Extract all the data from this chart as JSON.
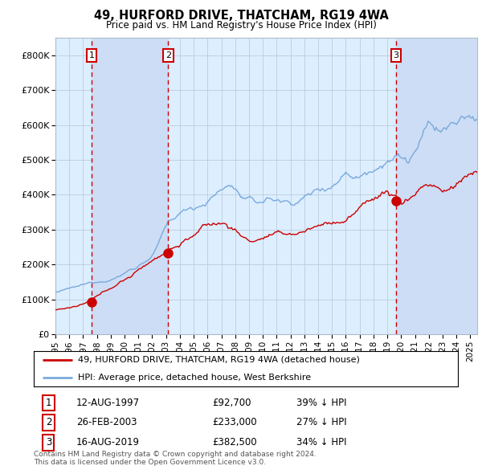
{
  "title": "49, HURFORD DRIVE, THATCHAM, RG19 4WA",
  "subtitle": "Price paid vs. HM Land Registry's House Price Index (HPI)",
  "legend_line1": "49, HURFORD DRIVE, THATCHAM, RG19 4WA (detached house)",
  "legend_line2": "HPI: Average price, detached house, West Berkshire",
  "footnote1": "Contains HM Land Registry data © Crown copyright and database right 2024.",
  "footnote2": "This data is licensed under the Open Government Licence v3.0.",
  "transactions": [
    {
      "num": 1,
      "date": "12-AUG-1997",
      "price": "£92,700",
      "pct": "39% ↓ HPI",
      "year": 1997.62
    },
    {
      "num": 2,
      "date": "26-FEB-2003",
      "price": "£233,000",
      "pct": "27% ↓ HPI",
      "year": 2003.15
    },
    {
      "num": 3,
      "date": "16-AUG-2019",
      "price": "£382,500",
      "pct": "34% ↓ HPI",
      "year": 2019.62
    }
  ],
  "transaction_values": [
    92700,
    233000,
    382500
  ],
  "ylim": [
    0,
    850000
  ],
  "yticks": [
    0,
    100000,
    200000,
    300000,
    400000,
    500000,
    600000,
    700000,
    800000
  ],
  "ytick_labels": [
    "£0",
    "£100K",
    "£200K",
    "£300K",
    "£400K",
    "£500K",
    "£600K",
    "£700K",
    "£800K"
  ],
  "red_color": "#cc0000",
  "blue_color": "#7aaadd",
  "bg_color": "#ddeeff",
  "grid_color": "#bbccdd",
  "ownership_spans": [
    {
      "start": 1997.62,
      "end": 2003.15
    },
    {
      "start": 2019.62,
      "end": 2025.5
    }
  ],
  "xmin": 1995.0,
  "xmax": 2025.5
}
